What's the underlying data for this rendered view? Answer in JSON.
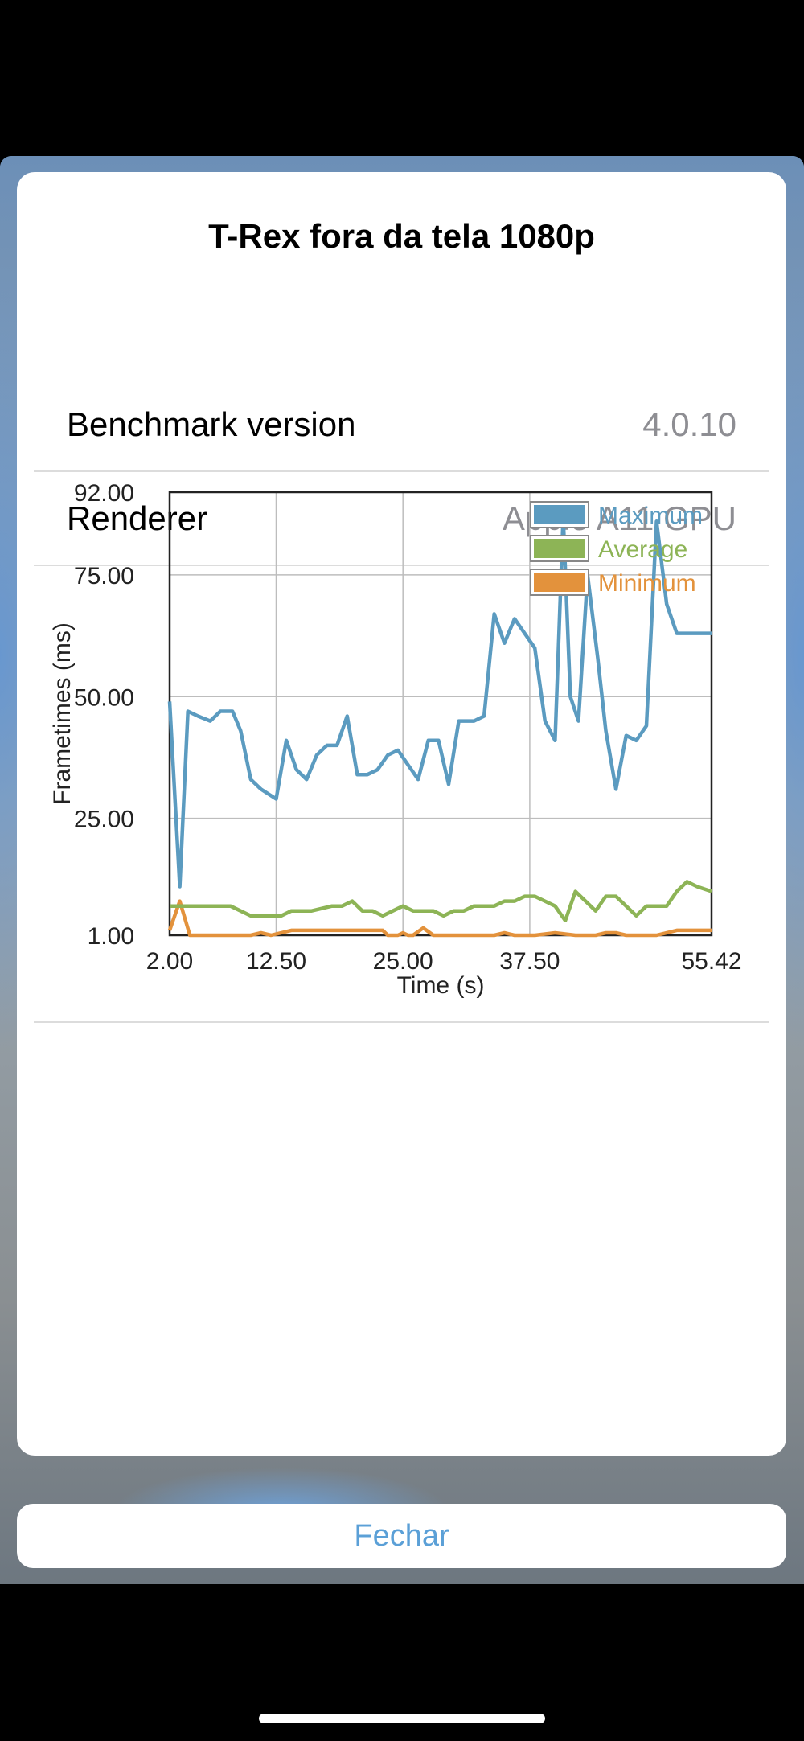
{
  "dialog": {
    "title": "T-Rex fora da tela 1080p",
    "rows": [
      {
        "label": "Benchmark version",
        "value": "4.0.10"
      },
      {
        "label": "Renderer",
        "value": "Apple A11 GPU"
      }
    ],
    "close_label": "Fechar"
  },
  "colors": {
    "maximum": "#5b9bc0",
    "average": "#8db456",
    "minimum": "#e3923c"
  },
  "chart_data": {
    "type": "line",
    "xlabel": "Time (s)",
    "ylabel": "Frametimes (ms)",
    "xlim": [
      2.0,
      55.42
    ],
    "ylim": [
      1.0,
      92.0
    ],
    "xtick_labels": [
      "2.00",
      "12.50",
      "25.00",
      "37.50",
      "55.42"
    ],
    "xtick_values": [
      2.0,
      12.5,
      25.0,
      37.5,
      55.42
    ],
    "ytick_labels": [
      "92.00",
      "75.00",
      "50.00",
      "25.00",
      "1.00"
    ],
    "ytick_values": [
      92.0,
      75.0,
      50.0,
      25.0,
      1.0
    ],
    "grid": true,
    "legend": "top-right",
    "series": [
      {
        "name": "Maximum",
        "x": [
          2.0,
          3.0,
          3.8,
          4.8,
          6.0,
          7.0,
          8.2,
          9.0,
          10.0,
          11.0,
          12.5,
          13.5,
          14.5,
          15.5,
          16.5,
          17.5,
          18.5,
          19.5,
          20.5,
          21.5,
          22.5,
          23.5,
          24.5,
          25.5,
          26.5,
          27.5,
          28.5,
          29.5,
          30.5,
          31.0,
          32.0,
          33.0,
          34.0,
          35.0,
          36.0,
          37.0,
          38.0,
          39.0,
          40.0,
          40.8,
          41.5,
          42.3,
          43.2,
          44.2,
          45.0,
          46.0,
          47.0,
          48.0,
          49.0,
          50.0,
          51.0,
          52.0,
          53.0,
          54.0,
          55.0,
          55.42
        ],
        "y": [
          49,
          11,
          47,
          46,
          45,
          47,
          47,
          43,
          33,
          31,
          29,
          41,
          35,
          33,
          38,
          40,
          40,
          46,
          34,
          34,
          35,
          38,
          39,
          36,
          33,
          41,
          41,
          32,
          45,
          45,
          45,
          46,
          67,
          61,
          66,
          63,
          60,
          45,
          41,
          87,
          50,
          45,
          75,
          58,
          43,
          31,
          42,
          41,
          44,
          86,
          69,
          63,
          63,
          63,
          63,
          63
        ],
        "color": "#5b9bc0"
      },
      {
        "name": "Average",
        "x": [
          2.0,
          4.0,
          6.0,
          8.0,
          10.0,
          12.0,
          13.0,
          14.0,
          16.0,
          18.0,
          19.0,
          20.0,
          21.0,
          22.0,
          23.0,
          24.0,
          25.0,
          26.0,
          27.0,
          28.0,
          29.0,
          30.0,
          31.0,
          32.0,
          33.0,
          34.0,
          35.0,
          36.0,
          37.0,
          38.0,
          39.0,
          40.0,
          41.0,
          42.0,
          43.0,
          44.0,
          45.0,
          46.0,
          47.0,
          48.0,
          49.0,
          50.0,
          51.0,
          52.0,
          53.0,
          54.0,
          55.42
        ],
        "y": [
          7,
          7,
          7,
          7,
          5,
          5,
          5,
          6,
          6,
          7,
          7,
          8,
          6,
          6,
          5,
          6,
          7,
          6,
          6,
          6,
          5,
          6,
          6,
          7,
          7,
          7,
          8,
          8,
          9,
          9,
          8,
          7,
          4,
          10,
          8,
          6,
          9,
          9,
          7,
          5,
          7,
          7,
          7,
          10,
          12,
          11,
          10
        ],
        "color": "#8db456"
      },
      {
        "name": "Minimum",
        "x": [
          2.0,
          3.0,
          4.0,
          6.0,
          8.0,
          9.0,
          10.0,
          11.0,
          12.0,
          14.0,
          16.0,
          18.0,
          20.0,
          22.0,
          23.0,
          23.5,
          24.5,
          25.0,
          25.5,
          26.0,
          27.0,
          28.0,
          29.0,
          30.0,
          32.0,
          34.0,
          35.0,
          36.0,
          38.0,
          40.0,
          42.0,
          44.0,
          45.0,
          46.0,
          47.0,
          48.0,
          50.0,
          52.0,
          54.0,
          55.42
        ],
        "y": [
          2,
          8,
          1,
          1,
          1,
          1,
          1,
          1.5,
          1,
          2,
          2,
          2,
          2,
          2,
          2,
          1,
          1,
          1.5,
          1,
          1,
          2.5,
          1,
          1,
          1,
          1,
          1,
          1.5,
          1,
          1,
          1.5,
          1,
          1,
          1.5,
          1.5,
          1,
          1,
          1,
          2,
          2,
          2
        ],
        "color": "#e3923c"
      }
    ]
  }
}
